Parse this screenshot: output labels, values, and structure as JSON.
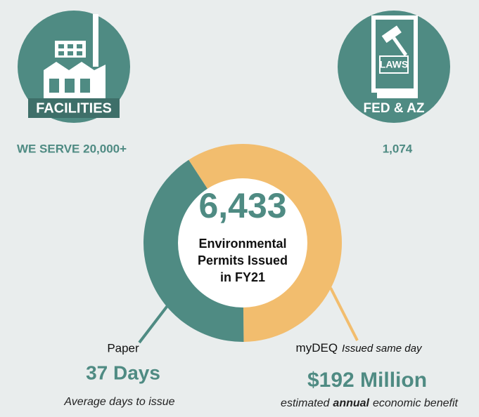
{
  "facilities": {
    "label": "FACILITIES",
    "caption": "WE SERVE 20,000+"
  },
  "laws": {
    "icon_text": "LAWS",
    "label": "FED & AZ",
    "caption": "1,074"
  },
  "chart_data": {
    "type": "pie",
    "total": "6,433",
    "center_lines": [
      "Environmental",
      "Permits Issued",
      "in FY21"
    ],
    "series": [
      {
        "name": "myDEQ",
        "color": "#f2bd6e",
        "value": 59,
        "subtitle": "Issued same day",
        "metric": "$192 Million",
        "description_parts": [
          "estimated",
          "annual",
          "economic benefit"
        ]
      },
      {
        "name": "Paper",
        "color": "#4f8b83",
        "value": 41,
        "metric": "37 Days",
        "description": "Average days to issue"
      }
    ]
  }
}
